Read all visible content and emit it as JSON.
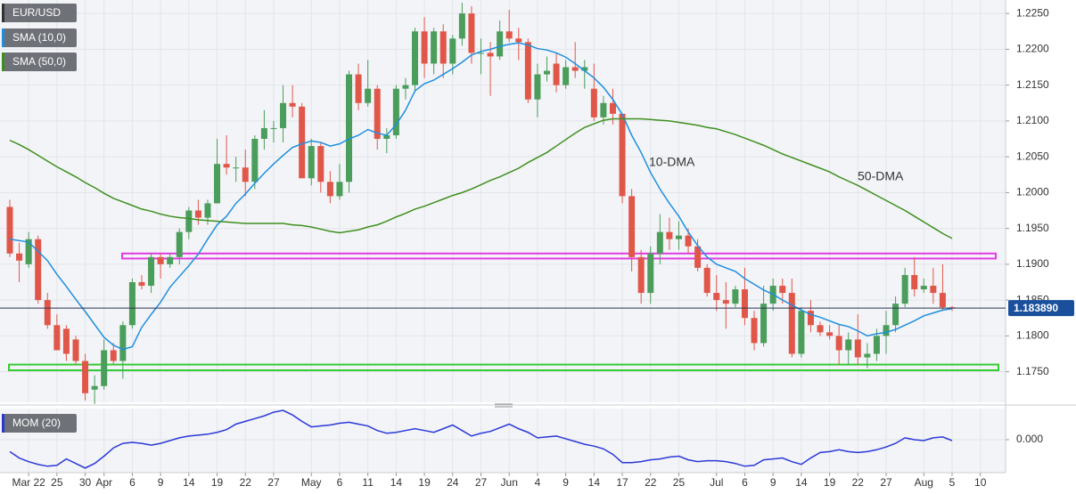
{
  "chart_data": [
    {
      "type": "candlestick",
      "name": "EUR/USD",
      "categories": [
        null,
        null,
        "Mar 22",
        null,
        null,
        "25",
        null,
        null,
        "30",
        null,
        "Apr",
        null,
        null,
        "6",
        null,
        null,
        "9",
        null,
        null,
        "14",
        null,
        null,
        "19",
        null,
        null,
        "22",
        null,
        null,
        "27",
        null,
        null,
        null,
        "May",
        null,
        null,
        "6",
        null,
        null,
        "11",
        null,
        null,
        "14",
        null,
        null,
        "19",
        null,
        null,
        "24",
        null,
        null,
        "27",
        null,
        null,
        "Jun",
        null,
        null,
        "4",
        null,
        null,
        "9",
        null,
        null,
        "14",
        null,
        null,
        "17",
        null,
        null,
        "22",
        null,
        null,
        "25",
        null,
        null,
        null,
        "Jul",
        null,
        null,
        "6",
        null,
        null,
        "9",
        null,
        null,
        "14",
        null,
        null,
        "19",
        null,
        null,
        "22",
        null,
        null,
        "27",
        null,
        null,
        null,
        "Aug",
        null,
        null,
        "5",
        null,
        null,
        "10"
      ],
      "open": [
        1.198,
        1.1915,
        1.19,
        1.1935,
        1.185,
        1.1815,
        1.181,
        1.1795,
        1.1765,
        1.1725,
        1.173,
        1.178,
        1.1765,
        1.1815,
        1.1875,
        1.187,
        1.191,
        1.19,
        1.191,
        1.1945,
        1.1975,
        1.1965,
        1.1985,
        1.204,
        1.2035,
        1.2035,
        1.2015,
        1.2075,
        1.209,
        1.209,
        1.2125,
        1.212,
        1.202,
        1.2065,
        1.2015,
        1.1995,
        1.2015,
        1.2165,
        1.2125,
        1.2145,
        1.2075,
        1.208,
        1.2145,
        1.215,
        1.2225,
        1.218,
        1.2225,
        1.218,
        1.2215,
        1.225,
        1.2195,
        1.2195,
        1.219,
        1.2225,
        1.2215,
        1.221,
        1.213,
        1.2165,
        1.218,
        1.215,
        1.2175,
        1.217,
        1.2145,
        1.2105,
        1.2125,
        1.211,
        1.1995,
        1.191,
        1.186,
        1.1915,
        1.1945,
        1.1935,
        1.194,
        1.1925,
        1.1895,
        1.186,
        1.185,
        1.1845,
        1.1865,
        1.1825,
        1.179,
        1.1845,
        1.187,
        1.186,
        1.1775,
        1.1835,
        1.1815,
        1.1805,
        1.18,
        1.178,
        1.1795,
        1.177,
        1.1775,
        1.18,
        1.1815,
        1.1845,
        1.1885,
        1.1865,
        1.187,
        1.186,
        1.184,
        null,
        null,
        null
      ],
      "high": [
        1.199,
        1.193,
        1.1945,
        1.194,
        1.186,
        1.183,
        1.1815,
        1.18,
        1.1775,
        1.1745,
        1.1795,
        1.179,
        1.182,
        1.188,
        1.1885,
        1.1915,
        1.1915,
        1.1915,
        1.195,
        1.198,
        1.199,
        1.199,
        1.2075,
        1.208,
        1.205,
        1.206,
        1.208,
        1.2115,
        1.21,
        1.215,
        1.215,
        1.2125,
        1.2075,
        1.207,
        1.203,
        1.204,
        1.217,
        1.218,
        1.2185,
        1.215,
        1.209,
        1.215,
        1.216,
        1.223,
        1.2245,
        1.223,
        1.2235,
        1.222,
        1.2265,
        1.226,
        1.2215,
        1.221,
        1.224,
        1.2255,
        1.223,
        1.2215,
        1.218,
        1.219,
        1.2195,
        1.2185,
        1.221,
        1.2185,
        1.218,
        1.2135,
        1.2145,
        1.211,
        1.2005,
        1.192,
        1.1925,
        1.197,
        1.1965,
        1.196,
        1.195,
        1.1935,
        1.19,
        1.1885,
        1.1875,
        1.187,
        1.1895,
        1.1835,
        1.187,
        1.188,
        1.188,
        1.188,
        1.184,
        1.185,
        1.182,
        1.1815,
        1.1815,
        1.1805,
        1.183,
        1.179,
        1.181,
        1.1835,
        1.1855,
        1.1895,
        1.191,
        1.188,
        1.1895,
        1.19,
        1.1842,
        null,
        null,
        null
      ],
      "low": [
        1.191,
        1.1875,
        1.1895,
        1.1845,
        1.181,
        1.178,
        1.1765,
        1.176,
        1.171,
        1.1705,
        1.1725,
        1.176,
        1.174,
        1.181,
        1.1865,
        1.186,
        1.188,
        1.1895,
        1.19,
        1.1935,
        1.1955,
        1.1955,
        1.1985,
        1.2025,
        1.2015,
        1.1995,
        1.2005,
        1.206,
        1.207,
        1.207,
        1.2105,
        1.202,
        1.201,
        1.2,
        1.1985,
        1.199,
        1.2,
        1.2115,
        1.212,
        1.206,
        1.2055,
        1.2075,
        1.213,
        1.214,
        1.216,
        1.2165,
        1.216,
        1.2165,
        1.2205,
        1.218,
        1.2165,
        1.2135,
        1.2185,
        1.221,
        1.2185,
        1.2125,
        1.2105,
        1.2155,
        1.214,
        1.2145,
        1.216,
        1.2145,
        1.21,
        1.2095,
        1.2095,
        1.1985,
        1.189,
        1.1845,
        1.1845,
        1.19,
        1.192,
        1.192,
        1.1915,
        1.189,
        1.1855,
        1.1835,
        1.181,
        1.184,
        1.1815,
        1.178,
        1.1785,
        1.1835,
        1.1845,
        1.177,
        1.177,
        1.1805,
        1.18,
        1.1795,
        1.176,
        1.176,
        1.176,
        1.1755,
        1.1765,
        1.1775,
        1.1805,
        1.184,
        1.1855,
        1.186,
        1.1845,
        1.1835,
        1.1835,
        null,
        null,
        null
      ],
      "close": [
        1.1915,
        1.1905,
        1.1935,
        1.185,
        1.1815,
        1.178,
        1.1775,
        1.1765,
        1.172,
        1.173,
        1.178,
        1.1765,
        1.1815,
        1.1875,
        1.187,
        1.191,
        1.19,
        1.191,
        1.1945,
        1.1975,
        1.1965,
        1.1985,
        1.204,
        1.2035,
        1.2035,
        1.2015,
        1.2075,
        1.209,
        1.209,
        1.2125,
        1.212,
        1.202,
        1.2065,
        1.2015,
        1.1995,
        1.2015,
        1.2165,
        1.2125,
        1.2145,
        1.2075,
        1.208,
        1.2145,
        1.215,
        1.2225,
        1.218,
        1.2225,
        1.218,
        1.2215,
        1.225,
        1.2195,
        1.2195,
        1.219,
        1.2225,
        1.2215,
        1.221,
        1.213,
        1.2165,
        1.217,
        1.215,
        1.2175,
        1.217,
        1.2175,
        1.2105,
        1.2125,
        1.211,
        1.1995,
        1.191,
        1.186,
        1.1915,
        1.1945,
        1.1935,
        1.194,
        1.1925,
        1.1895,
        1.186,
        1.185,
        1.1845,
        1.1865,
        1.1825,
        1.179,
        1.1845,
        1.187,
        1.186,
        1.1775,
        1.1835,
        1.1815,
        1.1805,
        1.18,
        1.178,
        1.1795,
        1.177,
        1.1775,
        1.18,
        1.1815,
        1.1845,
        1.1885,
        1.1865,
        1.187,
        1.186,
        1.184,
        1.18389,
        null,
        null,
        null
      ],
      "up_color": "#4a9d5b",
      "down_color": "#e0574a",
      "series": [
        {
          "name": "SMA (10,0)",
          "color": "#1e8fe0",
          "values": [
            1.1935,
            1.1933,
            1.1931,
            1.1918,
            1.1905,
            1.1886,
            1.1869,
            1.1851,
            1.1834,
            1.1816,
            1.1798,
            1.1787,
            1.1781,
            1.1785,
            1.1812,
            1.183,
            1.1847,
            1.1868,
            1.1883,
            1.1898,
            1.1914,
            1.1935,
            1.1955,
            1.1967,
            1.1985,
            1.1998,
            1.2013,
            1.2027,
            1.204,
            1.2052,
            1.2063,
            1.2068,
            1.2072,
            1.207,
            1.2065,
            1.2068,
            1.2075,
            1.208,
            1.2088,
            1.2083,
            1.208,
            1.2095,
            1.2115,
            1.2142,
            1.2152,
            1.2157,
            1.2165,
            1.2173,
            1.2182,
            1.2192,
            1.2197,
            1.22,
            1.2204,
            1.2207,
            1.2209,
            1.2206,
            1.2201,
            1.2199,
            1.2195,
            1.2189,
            1.218,
            1.217,
            1.216,
            1.2147,
            1.213,
            1.2109,
            1.208,
            1.2056,
            1.2028,
            1.2005,
            1.1985,
            1.1967,
            1.1945,
            1.1926,
            1.191,
            1.19,
            1.1895,
            1.189,
            1.188,
            1.1872,
            1.1864,
            1.1858,
            1.185,
            1.1843,
            1.1836,
            1.183,
            1.1826,
            1.1821,
            1.1816,
            1.1813,
            1.1807,
            1.18,
            1.1803,
            1.1805,
            1.1809,
            1.1815,
            1.1821,
            1.1828,
            1.1832,
            1.1836,
            1.1838,
            null,
            null,
            null
          ]
        },
        {
          "name": "SMA (50,0)",
          "color": "#3f8f1f",
          "values": [
            1.2073,
            1.2067,
            1.206,
            1.2052,
            1.2044,
            1.2036,
            1.2029,
            1.2022,
            1.2014,
            1.2007,
            1.1999,
            1.1992,
            1.1987,
            1.1982,
            1.1977,
            1.1974,
            1.197,
            1.1967,
            1.1965,
            1.1964,
            1.1962,
            1.1961,
            1.196,
            1.1959,
            1.1958,
            1.1957,
            1.1957,
            1.1957,
            1.1957,
            1.1957,
            1.1955,
            1.1954,
            1.1952,
            1.1949,
            1.1946,
            1.1944,
            1.1946,
            1.1948,
            1.1952,
            1.1955,
            1.196,
            1.1966,
            1.1971,
            1.1977,
            1.1981,
            1.1986,
            1.1991,
            1.1996,
            1.2,
            1.2005,
            1.2011,
            1.2017,
            1.2022,
            1.2028,
            1.2034,
            1.2042,
            1.2049,
            1.2056,
            1.2065,
            1.2074,
            1.2083,
            1.2091,
            1.2096,
            1.2101,
            1.2103,
            1.2103,
            1.2103,
            1.2103,
            1.2102,
            1.2101,
            1.21,
            1.2098,
            1.2096,
            1.2094,
            1.2091,
            1.2089,
            1.2085,
            1.2081,
            1.2076,
            1.2071,
            1.2066,
            1.206,
            1.2054,
            1.2049,
            1.2044,
            1.2039,
            1.2034,
            1.2029,
            1.2022,
            1.2016,
            1.201,
            1.2003,
            1.1996,
            1.1989,
            1.1982,
            1.1975,
            1.1967,
            1.1959,
            1.1951,
            1.1943,
            1.1936,
            null,
            null,
            null
          ]
        }
      ],
      "annotations": [
        {
          "text": "10-DMA",
          "color": "#1e8fe0"
        },
        {
          "text": "50-DMA",
          "color": "#3f8f1f"
        }
      ],
      "zones": [
        {
          "ylim": [
            1.1908,
            1.1915
          ],
          "color": "#e23be2"
        },
        {
          "ylim": [
            1.1752,
            1.176
          ],
          "color": "#33cc33"
        }
      ],
      "last_price": {
        "value": 1.18389,
        "label": "1.183890"
      },
      "ylim": [
        1.17073,
        1.22688
      ],
      "yticks": [
        {
          "value": 1.175,
          "label": "1.1750"
        },
        {
          "value": 1.18,
          "label": "1.1800"
        },
        {
          "value": 1.185,
          "label": "1.1850"
        },
        {
          "value": 1.19,
          "label": "1.1900"
        },
        {
          "value": 1.195,
          "label": "1.1950"
        },
        {
          "value": 1.2,
          "label": "1.2000"
        },
        {
          "value": 1.205,
          "label": "1.2050"
        },
        {
          "value": 1.21,
          "label": "1.2100"
        },
        {
          "value": 1.215,
          "label": "1.2150"
        },
        {
          "value": 1.22,
          "label": "1.2200"
        },
        {
          "value": 1.225,
          "label": "1.2250"
        }
      ],
      "grid": true
    },
    {
      "type": "line",
      "series": [
        {
          "name": "MOM (20)",
          "color": "#2a39d8",
          "values": [
            -0.013,
            -0.02,
            -0.024,
            -0.027,
            -0.029,
            -0.028,
            -0.021,
            -0.026,
            -0.031,
            -0.026,
            -0.018,
            -0.009,
            -0.004,
            -0.003,
            -0.004,
            -0.006,
            -0.004,
            -0.001,
            0.002,
            0.004,
            0.005,
            0.006,
            0.008,
            0.011,
            0.017,
            0.02,
            0.023,
            0.026,
            0.03,
            0.032,
            0.027,
            0.02,
            0.014,
            0.015,
            0.016,
            0.018,
            0.019,
            0.017,
            0.015,
            0.01,
            0.007,
            0.008,
            0.01,
            0.012,
            0.01,
            0.008,
            0.012,
            0.016,
            0.01,
            0.004,
            0.007,
            0.009,
            0.013,
            0.017,
            0.012,
            0.008,
            0.002,
            0.003,
            0.004,
            0.001,
            -0.002,
            -0.005,
            -0.007,
            -0.01,
            -0.016,
            -0.025,
            -0.025,
            -0.024,
            -0.022,
            -0.021,
            -0.019,
            -0.018,
            -0.022,
            -0.024,
            -0.023,
            -0.023,
            -0.024,
            -0.026,
            -0.029,
            -0.028,
            -0.022,
            -0.021,
            -0.02,
            -0.024,
            -0.027,
            -0.02,
            -0.014,
            -0.013,
            -0.011,
            -0.013,
            -0.014,
            -0.013,
            -0.011,
            -0.008,
            -0.004,
            0.002,
            0,
            -0.001,
            0.002,
            0.003,
            -0.001,
            null,
            null,
            null
          ]
        }
      ],
      "ylim": [
        -0.036,
        0.034
      ],
      "yticks": [
        {
          "value": 0,
          "label": "0.000"
        }
      ],
      "grid": true
    }
  ]
}
